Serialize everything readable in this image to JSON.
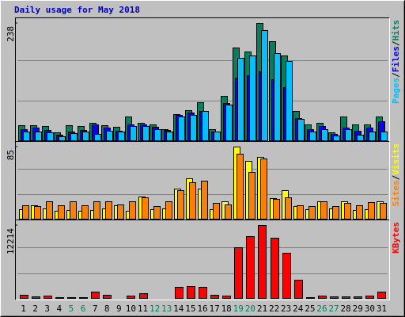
{
  "chart_data": {
    "type": "bar",
    "title": "Daily usage for May 2018",
    "categories": [
      "1",
      "2",
      "3",
      "4",
      "5",
      "6",
      "7",
      "8",
      "9",
      "10",
      "11",
      "12",
      "13",
      "14",
      "15",
      "16",
      "17",
      "18",
      "19",
      "20",
      "21",
      "22",
      "23",
      "24",
      "25",
      "26",
      "27",
      "28",
      "29",
      "30",
      "31"
    ],
    "category_label_colors": [
      "#000000",
      "#000000",
      "#000000",
      "#000000",
      "#00805c",
      "#00805c",
      "#000000",
      "#000000",
      "#000000",
      "#000000",
      "#000000",
      "#00805c",
      "#00805c",
      "#000000",
      "#000000",
      "#000000",
      "#000000",
      "#000000",
      "#00805c",
      "#00805c",
      "#000000",
      "#000000",
      "#000000",
      "#000000",
      "#000000",
      "#00805c",
      "#00805c",
      "#000000",
      "#000000",
      "#000000",
      "#000000"
    ],
    "legend_separator": "/",
    "panels": [
      {
        "ylim": [
          0,
          238
        ],
        "yticks": [
          238
        ],
        "series": [
          {
            "name": "Hits",
            "color": "#00805c",
            "values": [
              32,
              32,
              31,
              18,
              32,
              31,
              36,
              32,
              29,
              49,
              37,
              34,
              24,
              55,
              63,
              79,
              24,
              91,
              189,
              181,
              238,
              201,
              172,
              60,
              34,
              36,
              18,
              50,
              34,
              34,
              50
            ]
          },
          {
            "name": "Files",
            "color": "#0000ff",
            "values": [
              24,
              27,
              23,
              13,
              19,
              23,
              34,
              27,
              21,
              34,
              34,
              29,
              23,
              52,
              57,
              60,
              19,
              76,
              128,
              133,
              141,
              125,
              108,
              47,
              24,
              31,
              15,
              27,
              21,
              27,
              40
            ]
          },
          {
            "name": "Pages",
            "color": "#00c0ff",
            "values": [
              19,
              19,
              18,
              10,
              16,
              19,
              15,
              21,
              19,
              31,
              31,
              24,
              19,
              50,
              53,
              60,
              19,
              74,
              167,
              173,
              223,
              178,
              162,
              44,
              19,
              24,
              11,
              24,
              13,
              19,
              19
            ]
          }
        ]
      },
      {
        "ylim": [
          0,
          85
        ],
        "yticks": [
          85
        ],
        "series": [
          {
            "name": "Visits",
            "color": "#ffff00",
            "values": [
              12,
              17,
              13,
              10,
              11,
              10,
              11,
              13,
              17,
              10,
              27,
              12,
              13,
              36,
              48,
              36,
              12,
              21,
              85,
              68,
              73,
              25,
              34,
              16,
              12,
              21,
              13,
              21,
              11,
              12,
              21
            ]
          },
          {
            "name": "Sites",
            "color": "#ff8000",
            "values": [
              17,
              16,
              21,
              17,
              21,
              17,
              21,
              21,
              18,
              21,
              26,
              16,
              21,
              34,
              43,
              45,
              19,
              18,
              77,
              55,
              71,
              24,
              26,
              17,
              16,
              21,
              16,
              19,
              17,
              20,
              19
            ]
          }
        ]
      },
      {
        "ylim": [
          0,
          12214
        ],
        "yticks": [
          12214
        ],
        "series": [
          {
            "name": "KBytes",
            "color": "#ff0000",
            "values": [
              671,
              403,
              537,
              268,
              268,
              268,
              1208,
              671,
              134,
              537,
              940,
              134,
              134,
              2013,
              2148,
              2013,
              671,
              537,
              8590,
              10335,
              12214,
              10067,
              7651,
              3087,
              268,
              537,
              403,
              403,
              403,
              537,
              1208
            ]
          }
        ]
      }
    ]
  }
}
